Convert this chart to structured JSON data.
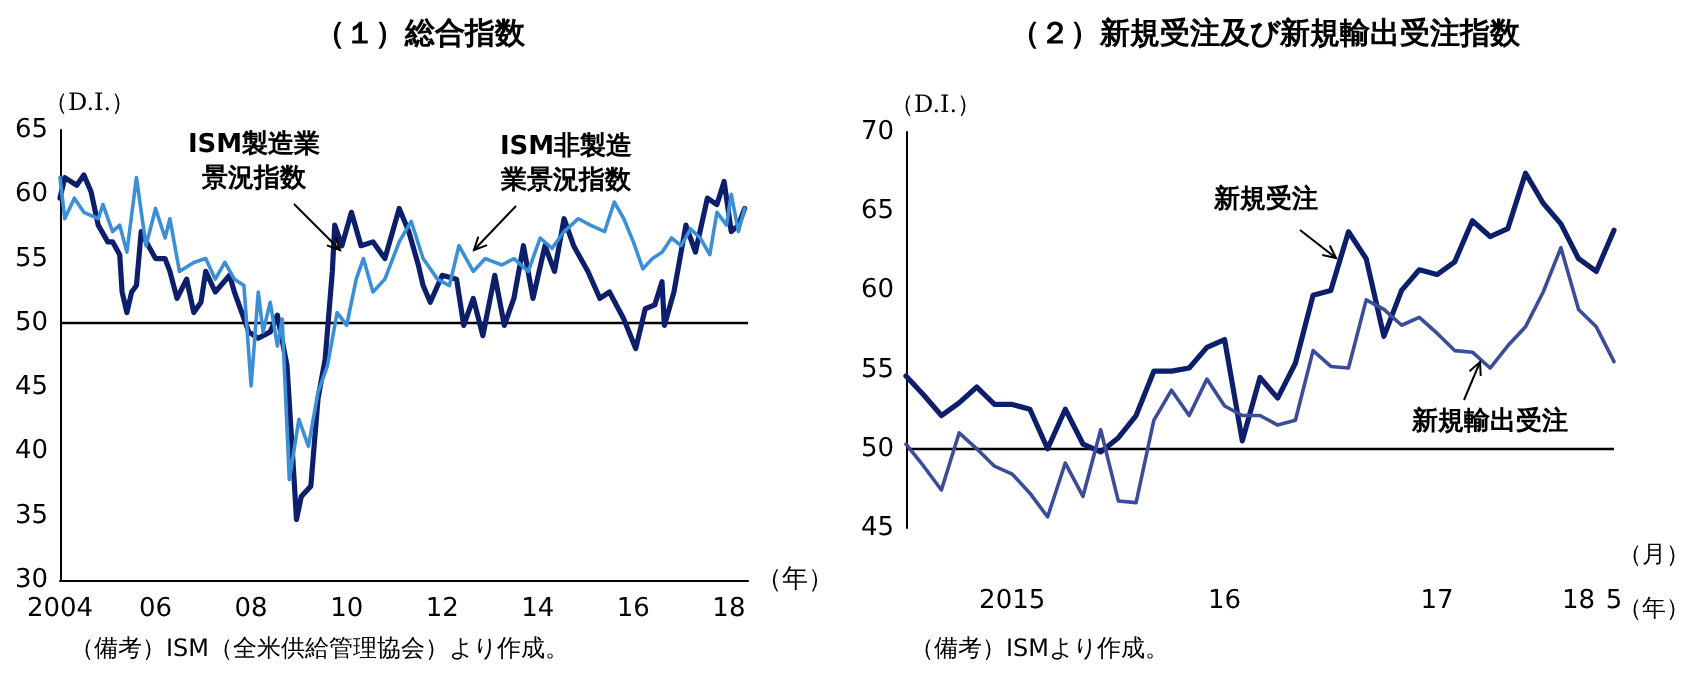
{
  "chart_data": [
    {
      "type": "line",
      "title": "（１）総合指数",
      "ylabel": "（D.I.）",
      "xlabel": "（年）",
      "marker": "none",
      "line_style": "solid",
      "xlim": [
        2004,
        2018.4
      ],
      "xticks": [
        2004,
        {
          "value": 2006,
          "label": "06"
        },
        {
          "value": 2008,
          "label": "08"
        },
        {
          "value": 2010,
          "label": "10"
        },
        {
          "value": 2012,
          "label": "12"
        },
        {
          "value": 2014,
          "label": "14"
        },
        {
          "value": 2016,
          "label": "16"
        },
        {
          "value": 2018,
          "label": "18"
        }
      ],
      "ylim": [
        30,
        65
      ],
      "yticks": [
        30,
        35,
        40,
        45,
        50,
        55,
        60,
        65
      ],
      "ref_lines": [
        {
          "axis": "y",
          "value": 50,
          "color": "#000000"
        }
      ],
      "annotations": [
        "（備考）ISM（全米供給管理協会）より作成。"
      ],
      "series": [
        {
          "name": "ISM製造業景況指数",
          "color": "#0d1f6b",
          "x": [
            2004.0,
            2004.1,
            2004.35,
            2004.5,
            2004.65,
            2004.8,
            2005.0,
            2005.1,
            2005.25,
            2005.3,
            2005.4,
            2005.5,
            2005.6,
            2005.7,
            2005.85,
            2006.0,
            2006.2,
            2006.3,
            2006.45,
            2006.65,
            2006.8,
            2006.95,
            2007.05,
            2007.25,
            2007.55,
            2007.65,
            2007.95,
            2008.15,
            2008.4,
            2008.55,
            2008.75,
            2008.9,
            2008.95,
            2009.05,
            2009.25,
            2009.4,
            2009.55,
            2009.7,
            2009.75,
            2009.9,
            2010.1,
            2010.3,
            2010.55,
            2010.8,
            2011.1,
            2011.3,
            2011.5,
            2011.6,
            2011.75,
            2012.0,
            2012.3,
            2012.45,
            2012.65,
            2012.85,
            2013.1,
            2013.3,
            2013.5,
            2013.7,
            2013.9,
            2014.15,
            2014.35,
            2014.55,
            2014.75,
            2015.05,
            2015.3,
            2015.5,
            2015.8,
            2016.05,
            2016.25,
            2016.45,
            2016.6,
            2016.65,
            2016.85,
            2017.1,
            2017.3,
            2017.55,
            2017.75,
            2017.9,
            2018.05,
            2018.2,
            2018.33
          ],
          "values": [
            59.7,
            61.3,
            60.7,
            61.5,
            60.2,
            57.6,
            56.3,
            56.3,
            55.3,
            52.4,
            50.8,
            52.4,
            52.9,
            57.1,
            56,
            55,
            55,
            54,
            51.9,
            53.4,
            50.8,
            51.6,
            54,
            52.4,
            53.7,
            52.4,
            49.3,
            48.8,
            49.3,
            50.6,
            46.7,
            37.8,
            34.7,
            36.5,
            37.3,
            44.1,
            47.2,
            54,
            57.6,
            56,
            58.6,
            56,
            56.3,
            55,
            58.9,
            57.1,
            54.5,
            52.9,
            51.6,
            53.7,
            53.4,
            49.8,
            51.9,
            49,
            53.7,
            49.8,
            51.9,
            56,
            51.9,
            56,
            54,
            58.1,
            56,
            54,
            51.9,
            52.4,
            50.3,
            48,
            51.1,
            51.4,
            53.2,
            49.8,
            52.4,
            57.6,
            55.5,
            59.7,
            59.2,
            61,
            57.1,
            57.6,
            58.9
          ]
        },
        {
          "name": "ISM非製造業景況指数",
          "color": "#3a8fd6",
          "x": [
            2004.0,
            2004.1,
            2004.3,
            2004.5,
            2004.8,
            2004.9,
            2005.1,
            2005.25,
            2005.4,
            2005.6,
            2005.8,
            2006.0,
            2006.2,
            2006.3,
            2006.5,
            2006.8,
            2007.05,
            2007.25,
            2007.45,
            2007.65,
            2007.85,
            2008.0,
            2008.15,
            2008.25,
            2008.4,
            2008.55,
            2008.65,
            2008.8,
            2009.0,
            2009.2,
            2009.4,
            2009.6,
            2009.8,
            2010.0,
            2010.2,
            2010.35,
            2010.55,
            2010.8,
            2011.1,
            2011.35,
            2011.6,
            2011.9,
            2012.15,
            2012.35,
            2012.65,
            2012.9,
            2013.25,
            2013.5,
            2013.8,
            2014.05,
            2014.3,
            2014.55,
            2014.85,
            2015.1,
            2015.4,
            2015.6,
            2015.8,
            2016.0,
            2016.2,
            2016.4,
            2016.6,
            2016.8,
            2017.0,
            2017.2,
            2017.4,
            2017.6,
            2017.75,
            2017.95,
            2018.05,
            2018.2,
            2018.33
          ],
          "values": [
            61.3,
            58.1,
            59.7,
            58.6,
            58.1,
            59.2,
            57.1,
            57.6,
            55.5,
            61.3,
            56,
            58.9,
            56.6,
            58.1,
            54,
            54.7,
            55,
            53.4,
            54.7,
            53.4,
            52.9,
            45.1,
            52.4,
            49.3,
            51.6,
            48.2,
            50.3,
            37.8,
            42.5,
            40.4,
            44.6,
            46.7,
            50.8,
            49.8,
            53.4,
            55,
            52.4,
            53.4,
            56.3,
            57.9,
            55,
            53.4,
            52.9,
            56,
            54,
            55,
            54.5,
            55,
            54,
            56.6,
            55.8,
            57.1,
            58.1,
            57.6,
            57.1,
            59.4,
            58.1,
            56.3,
            54.2,
            55,
            55.5,
            56.6,
            56,
            57.3,
            56.6,
            55.3,
            58.6,
            57.6,
            60,
            57.1,
            58.9
          ]
        }
      ]
    },
    {
      "type": "line",
      "title": "（２）新規受注及び新規輸出受注指数",
      "ylabel": "（D.I.）",
      "xlabel": "（年）",
      "marker": "none",
      "line_style": "solid",
      "categories": [
        null,
        null,
        null,
        null,
        null,
        null,
        "2015",
        null,
        null,
        null,
        null,
        null,
        null,
        null,
        null,
        null,
        null,
        null,
        "16",
        null,
        null,
        null,
        null,
        null,
        null,
        null,
        null,
        null,
        null,
        null,
        "17",
        null,
        null,
        null,
        null,
        null,
        null,
        null,
        "18",
        null,
        "5"
      ],
      "ylim": [
        45,
        70
      ],
      "yticks": [
        45,
        50,
        55,
        60,
        65,
        70
      ],
      "ref_lines": [
        {
          "axis": "y",
          "value": 50,
          "color": "#000000"
        }
      ],
      "annotations": [
        "（備考）ISMより作成。",
        "（月）"
      ],
      "series": [
        {
          "name": "新規受注",
          "color": "#0d1f6b",
          "values": [
            54.6,
            53.4,
            52.1,
            52.9,
            53.9,
            52.8,
            52.8,
            52.5,
            50,
            52.5,
            50.3,
            49.8,
            50.7,
            52.1,
            54.9,
            54.9,
            55.1,
            56.4,
            56.9,
            50.5,
            54.5,
            53.2,
            55.4,
            59.7,
            60,
            63.7,
            62,
            57.1,
            60,
            61.3,
            61,
            61.8,
            64.4,
            63.4,
            63.9,
            67.4,
            65.5,
            64.2,
            62,
            61.2,
            63.8
          ]
        },
        {
          "name": "新規輸出受注",
          "color": "#3b4c99",
          "values": [
            50.3,
            48.9,
            47.4,
            51,
            50,
            48.9,
            48.4,
            47.2,
            45.7,
            49.1,
            47,
            51.2,
            46.7,
            46.6,
            51.8,
            53.7,
            52.1,
            54.4,
            52.7,
            52.1,
            52.1,
            51.5,
            51.8,
            56.2,
            55.2,
            55.1,
            59.4,
            58.8,
            57.8,
            58.3,
            57.3,
            56.2,
            56.1,
            55.1,
            56.5,
            57.7,
            59.9,
            62.7,
            58.8,
            57.7,
            55.5
          ]
        }
      ]
    }
  ]
}
